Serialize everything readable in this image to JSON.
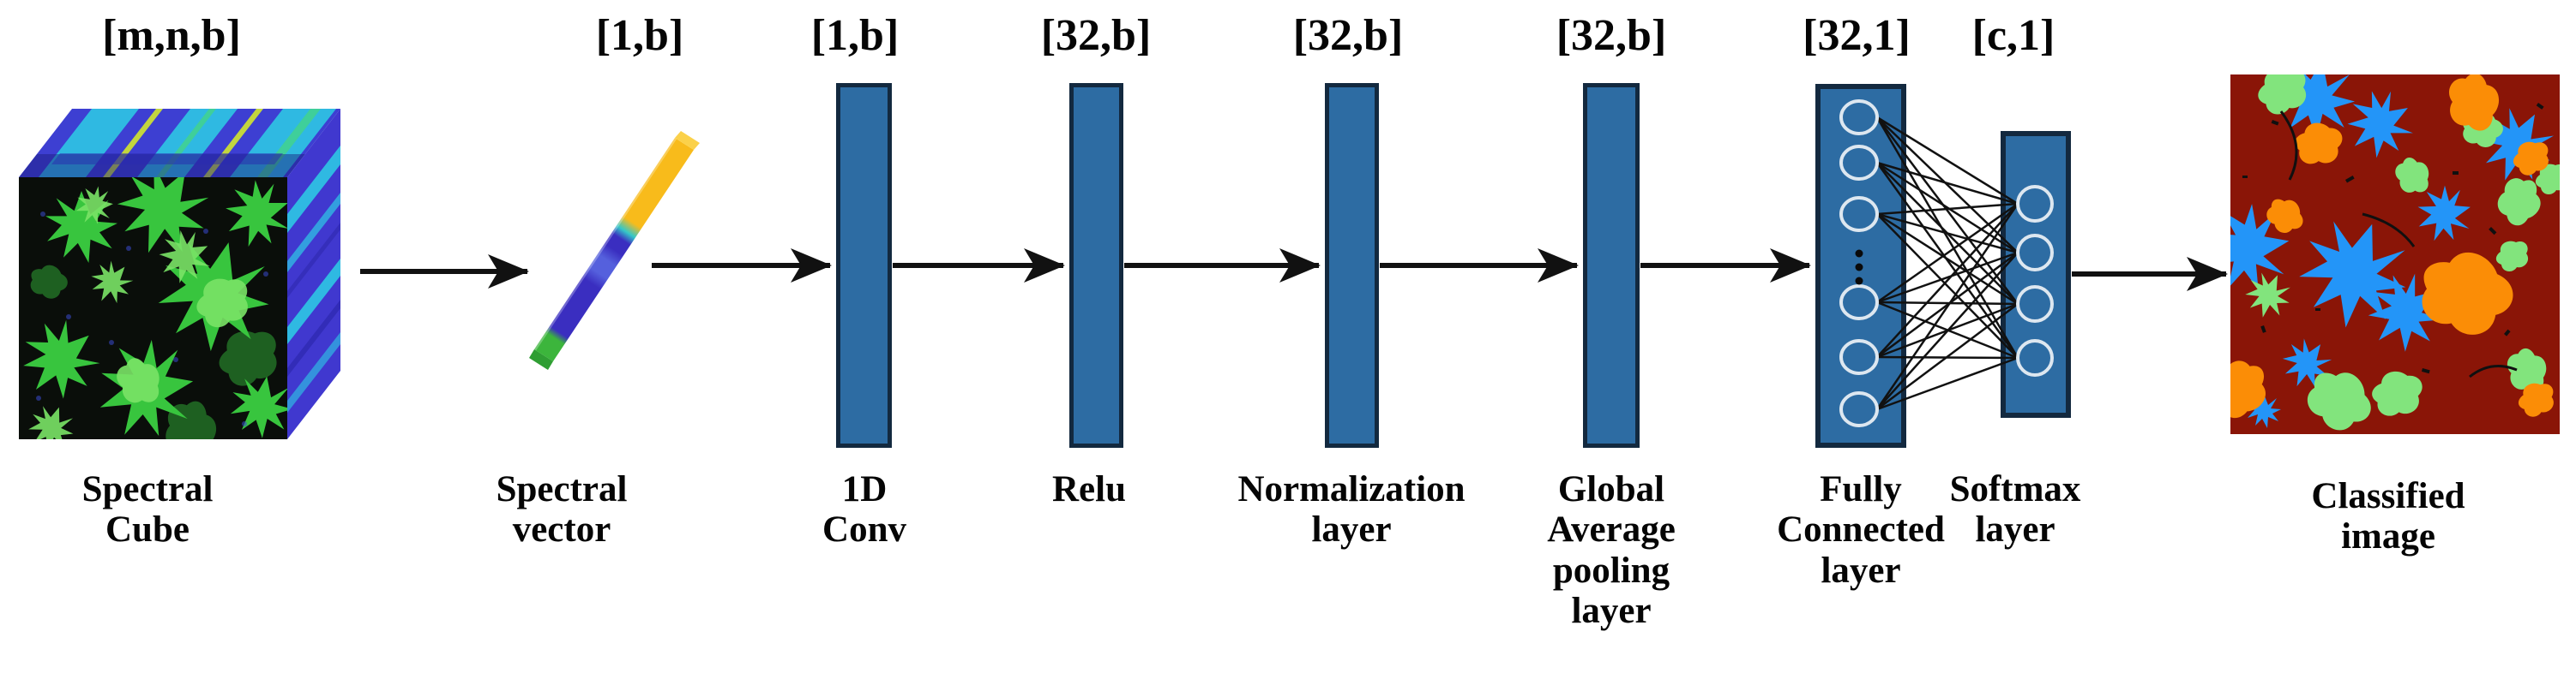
{
  "stages": [
    {
      "id": "spectral-cube",
      "dim": "[m,n,b]",
      "caption": [
        "Spectral",
        "Cube"
      ]
    },
    {
      "id": "spectral-vector",
      "dim": "[1,b]",
      "caption": [
        "Spectral",
        "vector"
      ]
    },
    {
      "id": "conv1d",
      "dim": "[1,b]",
      "caption": [
        "1D",
        "Conv"
      ]
    },
    {
      "id": "relu",
      "dim": "[32,b]",
      "caption": [
        "Relu"
      ]
    },
    {
      "id": "normalization",
      "dim": "[32,b]",
      "caption": [
        "Normalization",
        "layer"
      ]
    },
    {
      "id": "global-average-pooling",
      "dim": "[32,b]",
      "caption": [
        "Global",
        "Average",
        "pooling",
        "layer"
      ]
    },
    {
      "id": "fully-connected",
      "dim": "[32,1]",
      "caption": [
        "Fully",
        "Connected",
        "layer"
      ]
    },
    {
      "id": "softmax",
      "dim": "[c,1]",
      "caption": [
        "Softmax",
        "layer"
      ]
    },
    {
      "id": "classified-image",
      "dim": "",
      "caption": [
        "Classified",
        "image"
      ]
    }
  ],
  "colors": {
    "bar_fill": "#2d6ca3",
    "bar_border": "#13293f",
    "circle_stroke": "#dde7f0",
    "line_color": "#111111",
    "cube_front": "#0a0e0a",
    "cube_green1": "#38c53e",
    "cube_green2": "#7ae467",
    "cube_top": "#3d3fd2",
    "cube_side": "#4038cf",
    "cube_cyan": "#2fb9e2",
    "cube_teal": "#3fcf9a",
    "cube_streak": "#c3d63e",
    "vec_green": "#3cb53c",
    "vec_indigo": "#3a2ec0",
    "vec_light": "#5560dd",
    "vec_cyan": "#35c8c8",
    "vec_yellow": "#f8bb1b",
    "cls_bg": "#8a1507",
    "cls_blue": "#2395f8",
    "cls_green": "#82e47d",
    "cls_orange": "#fb8d06",
    "cls_speck": "#101010"
  }
}
